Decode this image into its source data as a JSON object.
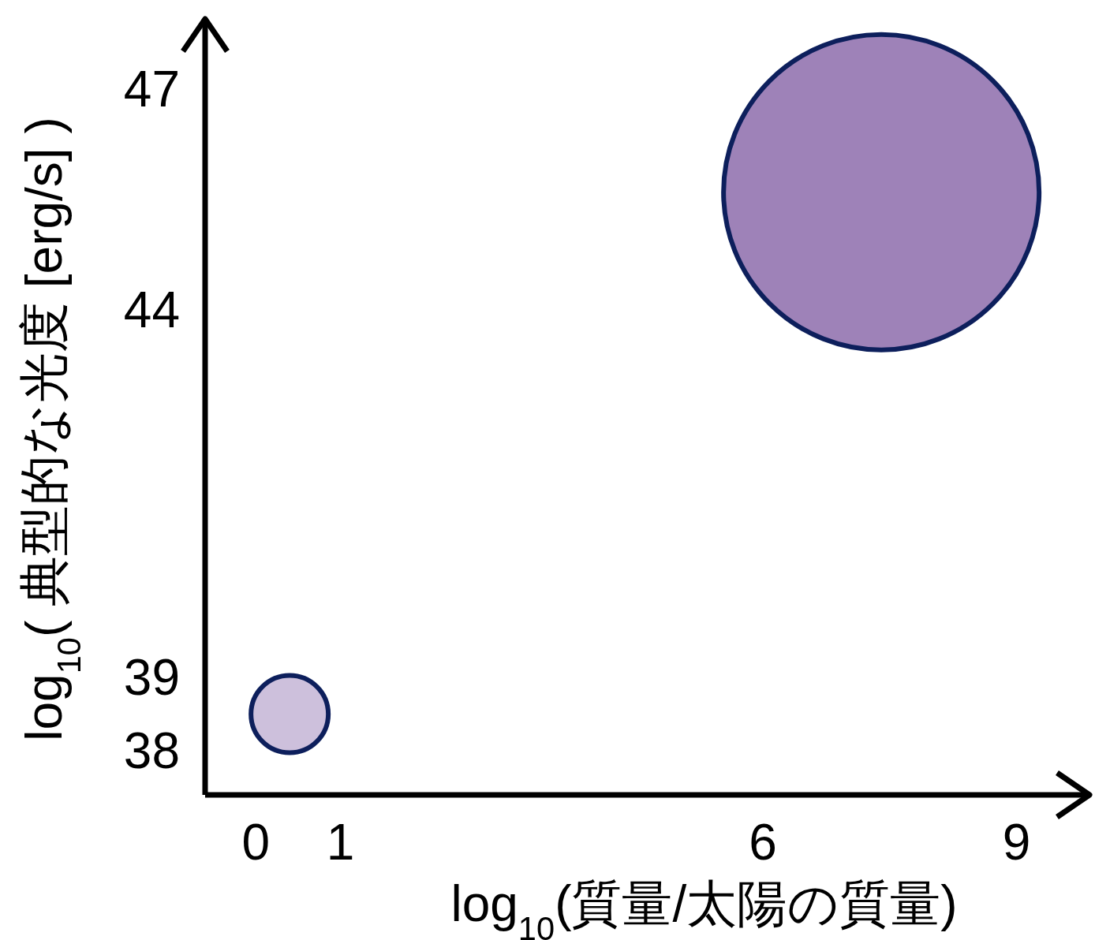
{
  "chart_data": {
    "type": "bubble",
    "xlabel": "log$_{10}$(質量/太陽の質量)",
    "ylabel": "log$_{10}$( 典型的な光度 [erg/s] )",
    "x": [
      0.4,
      7.4
    ],
    "values": [
      38.5,
      45.6
    ],
    "sizes": [
      0.06,
      1
    ],
    "colors": [
      "#cdc0dc",
      "#9e82b8"
    ],
    "xlim": [
      -0.6,
      9.9
    ],
    "xticks": [
      0,
      1,
      6,
      9
    ],
    "ylim": [
      37.4,
      48
    ],
    "yticks": [
      38,
      39,
      44,
      47
    ],
    "grid": false
  }
}
